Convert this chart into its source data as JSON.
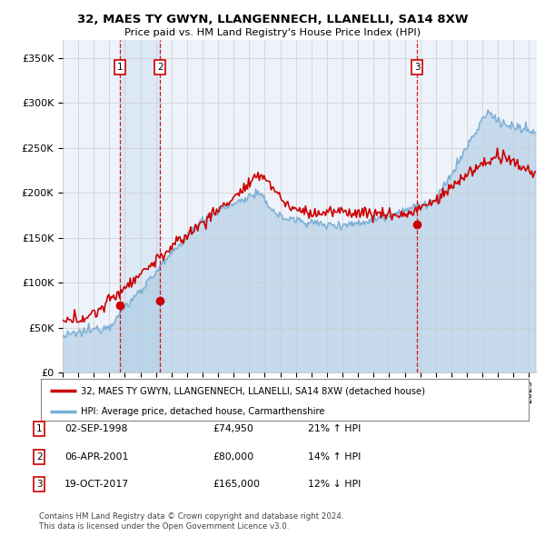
{
  "title": "32, MAES TY GWYN, LLANGENNECH, LLANELLI, SA14 8XW",
  "subtitle": "Price paid vs. HM Land Registry's House Price Index (HPI)",
  "ylabel_ticks": [
    "£0",
    "£50K",
    "£100K",
    "£150K",
    "£200K",
    "£250K",
    "£300K",
    "£350K"
  ],
  "ytick_values": [
    0,
    50000,
    100000,
    150000,
    200000,
    250000,
    300000,
    350000
  ],
  "ylim": [
    0,
    370000
  ],
  "xlim_start": 1995.0,
  "xlim_end": 2025.5,
  "legend_line1": "32, MAES TY GWYN, LLANGENNECH, LLANELLI, SA14 8XW (detached house)",
  "legend_line2": "HPI: Average price, detached house, Carmarthenshire",
  "transactions": [
    {
      "num": 1,
      "date": "02-SEP-1998",
      "price": 74950,
      "year": 1998.67,
      "pct": "21%",
      "dir": "↑"
    },
    {
      "num": 2,
      "date": "06-APR-2001",
      "price": 80000,
      "year": 2001.27,
      "pct": "14%",
      "dir": "↑"
    },
    {
      "num": 3,
      "date": "19-OCT-2017",
      "price": 165000,
      "year": 2017.8,
      "pct": "12%",
      "dir": "↓"
    }
  ],
  "footnote1": "Contains HM Land Registry data © Crown copyright and database right 2024.",
  "footnote2": "This data is licensed under the Open Government Licence v3.0.",
  "red_color": "#cc0000",
  "blue_color": "#7bafd4",
  "vline_color": "#cc0000",
  "grid_color": "#cccccc",
  "bg_color": "#ffffff",
  "plot_bg_color": "#eef2fa",
  "shade_between_vlines_color": "#dce8f5"
}
